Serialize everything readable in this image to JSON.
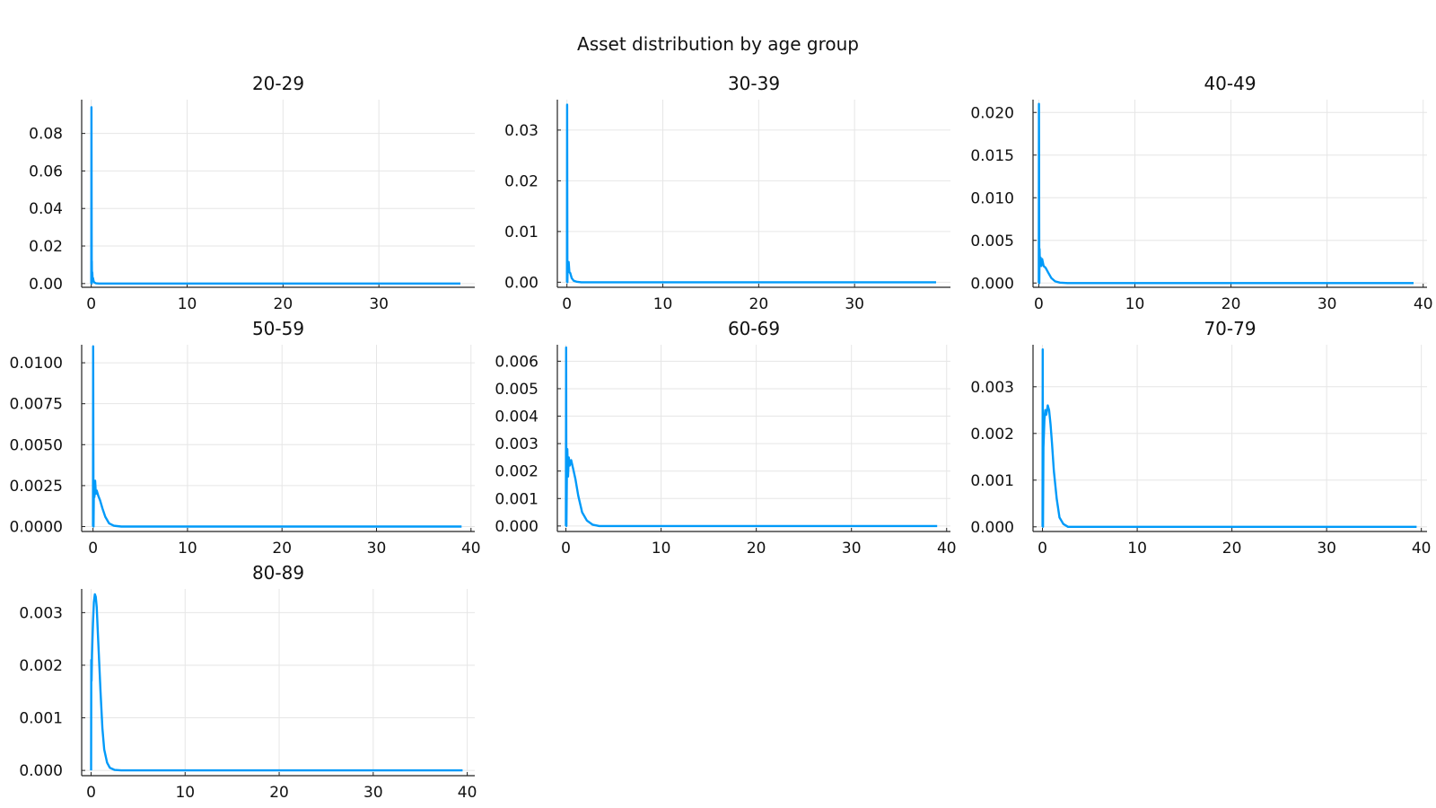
{
  "figure_title": "Asset distribution by age group",
  "colors": {
    "line": "#009af9",
    "grid": "#e6e6e6",
    "axis": "#222222",
    "text": "#111111"
  },
  "chart_data": [
    {
      "type": "line",
      "title": "20-29",
      "xlabel": "",
      "ylabel": "",
      "xlim": [
        -1,
        40
      ],
      "ylim": [
        -0.002,
        0.098
      ],
      "xticks": [
        0,
        10,
        20,
        30
      ],
      "xtick_labels": [
        "0",
        "10",
        "20",
        "30"
      ],
      "yticks": [
        0.0,
        0.02,
        0.04,
        0.06,
        0.08
      ],
      "ytick_labels": [
        "0.00",
        "0.02",
        "0.04",
        "0.06",
        "0.08"
      ],
      "grid": true,
      "legend": "none",
      "series": [
        {
          "x": [
            0,
            0.02,
            0.05,
            0.06,
            0.08,
            0.1,
            0.14,
            0.18,
            0.25,
            0.35,
            0.5,
            0.8,
            1.5,
            3,
            10,
            20,
            30,
            38.5
          ],
          "y": [
            0.0,
            0.094,
            0.0,
            0.012,
            0.002,
            0.006,
            0.002,
            0.003,
            0.001,
            0.0005,
            0.0001,
            0.0,
            0.0,
            0.0,
            0.0,
            0.0,
            0.0,
            0.0
          ]
        }
      ]
    },
    {
      "type": "line",
      "title": "30-39",
      "xlabel": "",
      "ylabel": "",
      "xlim": [
        -1,
        40
      ],
      "ylim": [
        -0.001,
        0.036
      ],
      "xticks": [
        0,
        10,
        20,
        30
      ],
      "xtick_labels": [
        "0",
        "10",
        "20",
        "30"
      ],
      "yticks": [
        0.0,
        0.01,
        0.02,
        0.03
      ],
      "ytick_labels": [
        "0.00",
        "0.01",
        "0.02",
        "0.03"
      ],
      "grid": true,
      "legend": "none",
      "series": [
        {
          "x": [
            0,
            0.02,
            0.05,
            0.08,
            0.12,
            0.18,
            0.25,
            0.35,
            0.5,
            0.7,
            1.0,
            1.5,
            3,
            10,
            20,
            30,
            38.5
          ],
          "y": [
            0.0,
            0.035,
            0.0,
            0.004,
            0.002,
            0.004,
            0.002,
            0.0018,
            0.0008,
            0.0003,
            0.0001,
            0.0,
            0.0,
            0.0,
            0.0,
            0.0,
            0.0
          ]
        }
      ]
    },
    {
      "type": "line",
      "title": "40-49",
      "xlabel": "",
      "ylabel": "",
      "xlim": [
        -0.6,
        40.4
      ],
      "ylim": [
        -0.0005,
        0.0215
      ],
      "xticks": [
        0,
        10,
        20,
        30,
        40
      ],
      "xtick_labels": [
        "0",
        "10",
        "20",
        "30",
        "40"
      ],
      "yticks": [
        0.0,
        0.005,
        0.01,
        0.015,
        0.02
      ],
      "ytick_labels": [
        "0.000",
        "0.005",
        "0.010",
        "0.015",
        "0.020"
      ],
      "grid": true,
      "legend": "none",
      "series": [
        {
          "x": [
            0,
            0.02,
            0.05,
            0.08,
            0.12,
            0.18,
            0.25,
            0.35,
            0.5,
            0.7,
            1.0,
            1.3,
            1.7,
            2.2,
            3,
            10,
            20,
            30,
            39
          ],
          "y": [
            0.0,
            0.021,
            0.0,
            0.004,
            0.002,
            0.003,
            0.002,
            0.0028,
            0.002,
            0.0018,
            0.0012,
            0.0006,
            0.0002,
            5e-05,
            0.0,
            0.0,
            0.0,
            0.0,
            0.0
          ]
        }
      ]
    },
    {
      "type": "line",
      "title": "50-59",
      "xlabel": "",
      "ylabel": "",
      "xlim": [
        -1.2,
        40.4
      ],
      "ylim": [
        -0.0003,
        0.0111
      ],
      "xticks": [
        0,
        10,
        20,
        30,
        40
      ],
      "xtick_labels": [
        "0",
        "10",
        "20",
        "30",
        "40"
      ],
      "yticks": [
        0.0,
        0.0025,
        0.005,
        0.0075,
        0.01
      ],
      "ytick_labels": [
        "0.0000",
        "0.0025",
        "0.0050",
        "0.0075",
        "0.0100"
      ],
      "grid": true,
      "legend": "none",
      "series": [
        {
          "x": [
            0,
            0.02,
            0.05,
            0.1,
            0.15,
            0.22,
            0.3,
            0.4,
            0.55,
            0.75,
            1.0,
            1.3,
            1.7,
            2.2,
            3,
            10,
            20,
            30,
            39
          ],
          "y": [
            0.0,
            0.011,
            0.0,
            0.0028,
            0.0018,
            0.0028,
            0.002,
            0.0022,
            0.0019,
            0.0016,
            0.0011,
            0.0006,
            0.0002,
            5e-05,
            0.0,
            0.0,
            0.0,
            0.0,
            0.0
          ]
        }
      ]
    },
    {
      "type": "line",
      "title": "60-69",
      "xlabel": "",
      "ylabel": "",
      "xlim": [
        -0.9,
        40.4
      ],
      "ylim": [
        -0.0002,
        0.0066
      ],
      "xticks": [
        0,
        10,
        20,
        30,
        40
      ],
      "xtick_labels": [
        "0",
        "10",
        "20",
        "30",
        "40"
      ],
      "yticks": [
        0.0,
        0.001,
        0.002,
        0.003,
        0.004,
        0.005,
        0.006
      ],
      "ytick_labels": [
        "0.000",
        "0.001",
        "0.002",
        "0.003",
        "0.004",
        "0.005",
        "0.006"
      ],
      "grid": true,
      "legend": "none",
      "series": [
        {
          "x": [
            0,
            0.02,
            0.05,
            0.1,
            0.15,
            0.22,
            0.3,
            0.4,
            0.55,
            0.75,
            1.0,
            1.3,
            1.7,
            2.2,
            2.8,
            3.5,
            10,
            20,
            30,
            39
          ],
          "y": [
            0.0,
            0.0065,
            0.0,
            0.0018,
            0.0028,
            0.0018,
            0.0025,
            0.0022,
            0.0024,
            0.0021,
            0.0017,
            0.0011,
            0.0005,
            0.0002,
            5e-05,
            0.0,
            0.0,
            0.0,
            0.0,
            0.0
          ]
        }
      ]
    },
    {
      "type": "line",
      "title": "70-79",
      "xlabel": "",
      "ylabel": "",
      "xlim": [
        -1.0,
        40.6
      ],
      "ylim": [
        -0.0001,
        0.0039
      ],
      "xticks": [
        0,
        10,
        20,
        30,
        40
      ],
      "xtick_labels": [
        "0",
        "10",
        "20",
        "30",
        "40"
      ],
      "yticks": [
        0.0,
        0.001,
        0.002,
        0.003
      ],
      "ytick_labels": [
        "0.000",
        "0.001",
        "0.002",
        "0.003"
      ],
      "grid": true,
      "legend": "none",
      "series": [
        {
          "x": [
            0,
            0.02,
            0.05,
            0.1,
            0.2,
            0.3,
            0.4,
            0.55,
            0.7,
            0.85,
            1.0,
            1.2,
            1.5,
            1.8,
            2.2,
            2.7,
            3.5,
            10,
            20,
            30,
            39.5
          ],
          "y": [
            0.0,
            0.0038,
            0.0,
            0.0017,
            0.0023,
            0.0025,
            0.0024,
            0.0026,
            0.0025,
            0.0022,
            0.0018,
            0.0012,
            0.0006,
            0.0002,
            6e-05,
            0.0,
            0.0,
            0.0,
            0.0,
            0.0,
            0.0
          ]
        }
      ]
    },
    {
      "type": "line",
      "title": "80-89",
      "xlabel": "",
      "ylabel": "",
      "xlim": [
        -1.0,
        40.8
      ],
      "ylim": [
        -0.0001,
        0.00345
      ],
      "xticks": [
        0,
        10,
        20,
        30,
        40
      ],
      "xtick_labels": [
        "0",
        "10",
        "20",
        "30",
        "40"
      ],
      "yticks": [
        0.0,
        0.001,
        0.002,
        0.003
      ],
      "ytick_labels": [
        "0.000",
        "0.001",
        "0.002",
        "0.003"
      ],
      "grid": true,
      "legend": "none",
      "series": [
        {
          "x": [
            0,
            0.02,
            0.05,
            0.1,
            0.2,
            0.3,
            0.4,
            0.5,
            0.6,
            0.7,
            0.85,
            1.0,
            1.2,
            1.4,
            1.7,
            2.0,
            2.5,
            3.2,
            10,
            20,
            30,
            39.5
          ],
          "y": [
            0.0,
            0.0021,
            0.0017,
            0.0022,
            0.0028,
            0.0032,
            0.00335,
            0.0033,
            0.0031,
            0.0027,
            0.0021,
            0.0015,
            0.0008,
            0.0004,
            0.00015,
            5e-05,
            1e-05,
            0.0,
            0.0,
            0.0,
            0.0,
            0.0
          ]
        }
      ]
    }
  ]
}
